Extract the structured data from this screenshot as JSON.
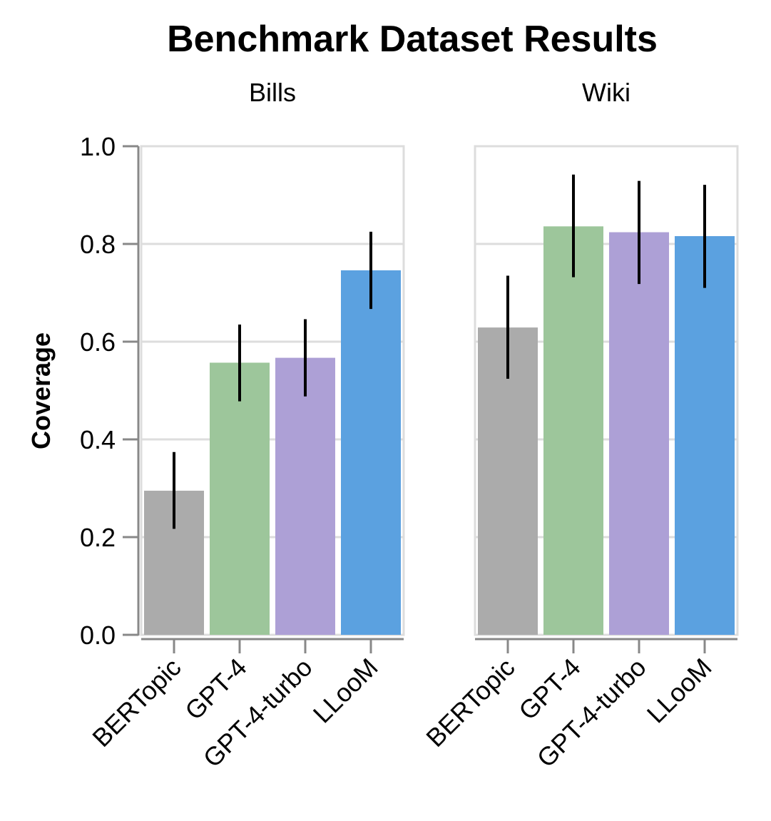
{
  "chart_data": {
    "type": "bar",
    "title": "Benchmark Dataset Results",
    "ylabel": "Coverage",
    "xlabel": "",
    "ylim": [
      0,
      1
    ],
    "yticks": [
      "0.0",
      "0.2",
      "0.4",
      "0.6",
      "0.8",
      "1.0"
    ],
    "grid": true,
    "legend": "none",
    "categories": [
      "BERTopic",
      "GPT-4",
      "GPT-4-turbo",
      "LLooM"
    ],
    "colors": [
      "#ababab",
      "#9dc69b",
      "#ada0d6",
      "#5ba1e0"
    ],
    "facets": [
      {
        "name": "Bills",
        "values": [
          0.295,
          0.557,
          0.567,
          0.746
        ],
        "err_low": [
          0.217,
          0.478,
          0.488,
          0.667
        ],
        "err_high": [
          0.374,
          0.635,
          0.646,
          0.825
        ]
      },
      {
        "name": "Wiki",
        "values": [
          0.629,
          0.836,
          0.824,
          0.816
        ],
        "err_low": [
          0.524,
          0.732,
          0.718,
          0.71
        ],
        "err_high": [
          0.735,
          0.942,
          0.929,
          0.921
        ]
      }
    ]
  }
}
